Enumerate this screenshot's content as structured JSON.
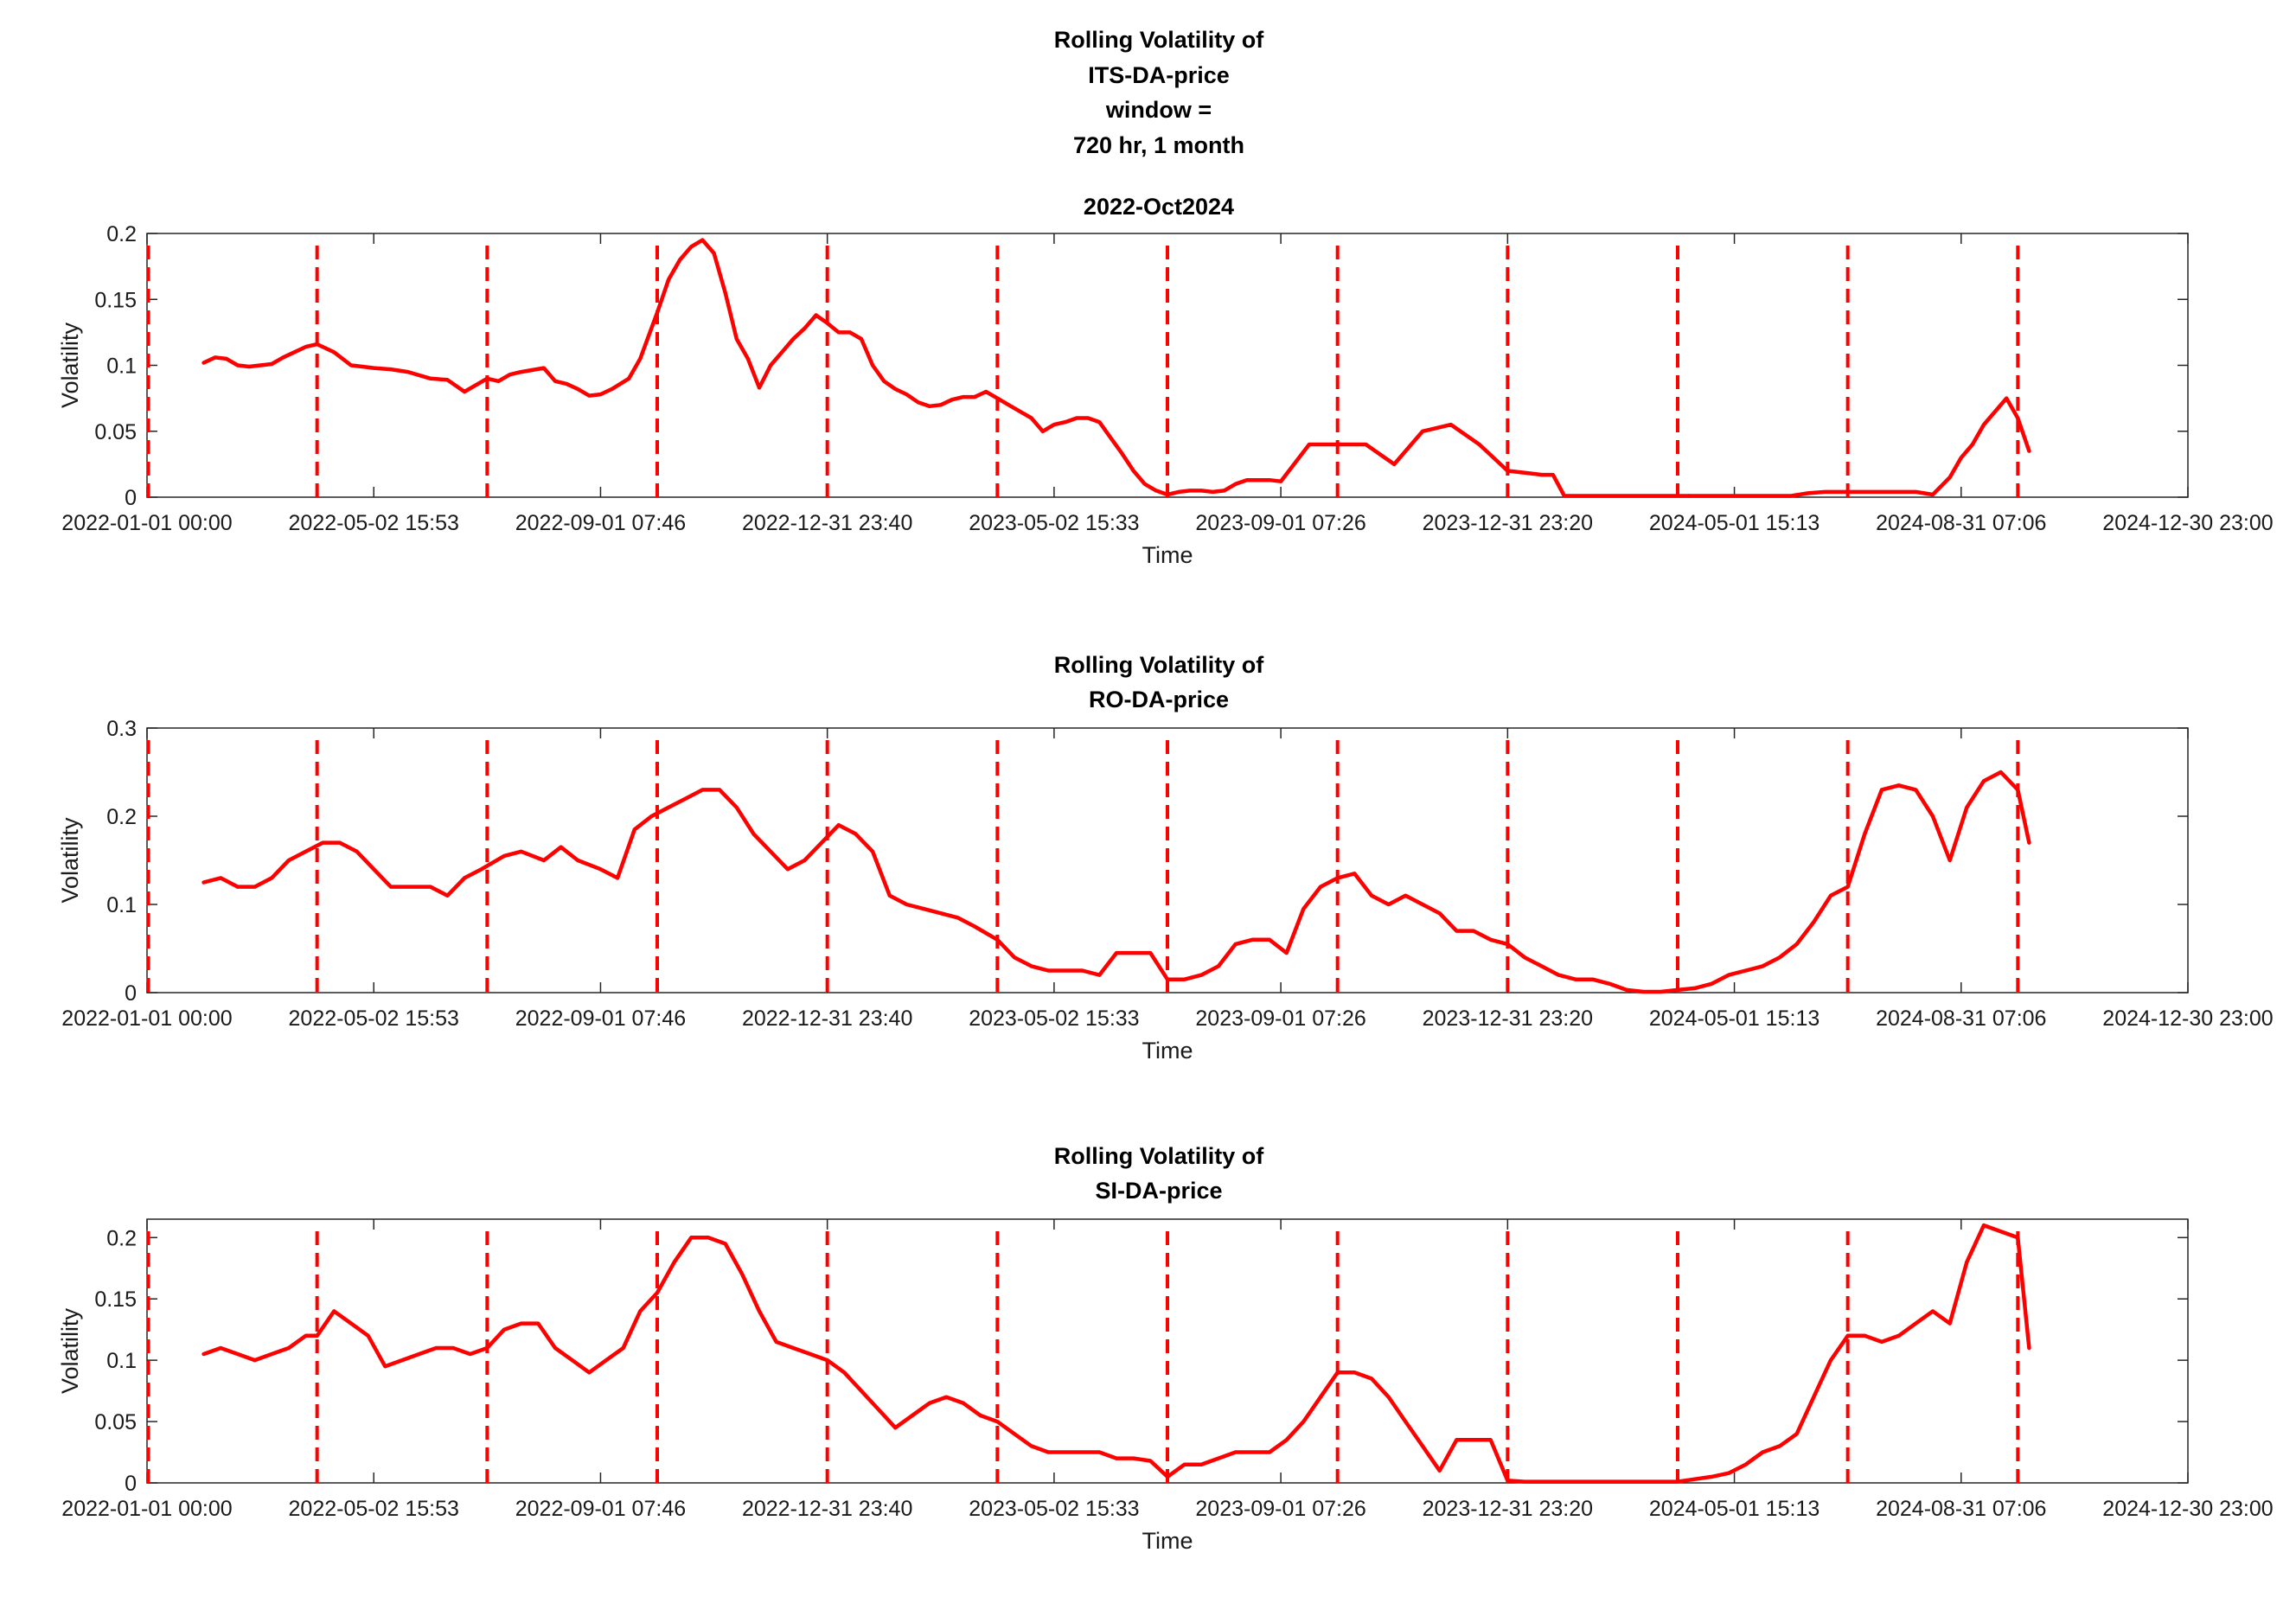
{
  "figure": {
    "title_lines": [
      "Rolling Volatility of",
      "ITS-DA-price",
      "window =",
      "720 hr, 1 month"
    ]
  },
  "colors": {
    "line": "#ff0000",
    "axis": "#262626",
    "background": "#ffffff"
  },
  "chart_data": [
    {
      "type": "line",
      "title_lines": [
        "2022-Oct2024"
      ],
      "xlabel": "Time",
      "ylabel": "Volatility",
      "x_ticks": [
        "2022-01-01 00:00",
        "2022-05-02 15:53",
        "2022-09-01 07:46",
        "2022-12-31 23:40",
        "2023-05-02 15:33",
        "2023-09-01 07:26",
        "2023-12-31 23:20",
        "2024-05-01 15:13",
        "2024-08-31 07:06",
        "2024-12-30 23:00"
      ],
      "y_ticks": [
        "0",
        "0.05",
        "0.1",
        "0.15",
        "0.2"
      ],
      "ylim": [
        0,
        0.2
      ],
      "xlim_months": [
        0,
        36
      ],
      "month_markers": [
        0,
        3,
        6,
        9,
        12,
        15,
        18,
        21,
        24,
        27,
        30,
        33
      ],
      "series": [
        {
          "x": [
            1,
            1.2,
            1.4,
            1.6,
            1.8,
            2.0,
            2.2,
            2.4,
            2.6,
            2.8,
            3.0,
            3.3,
            3.6,
            3.8,
            4.0,
            4.3,
            4.6,
            5.0,
            5.3,
            5.6,
            6.0,
            6.2,
            6.4,
            6.6,
            7.0,
            7.2,
            7.4,
            7.6,
            7.8,
            8.0,
            8.2,
            8.5,
            8.7,
            9.0,
            9.2,
            9.4,
            9.6,
            9.8,
            10.0,
            10.2,
            10.4,
            10.6,
            10.8,
            11.0,
            11.2,
            11.4,
            11.6,
            11.8,
            12.0,
            12.2,
            12.4,
            12.6,
            12.8,
            13.0,
            13.2,
            13.4,
            13.6,
            13.8,
            14.0,
            14.2,
            14.4,
            14.6,
            14.8,
            15.0,
            15.2,
            15.4,
            15.6,
            15.8,
            16.0,
            16.2,
            16.4,
            16.6,
            16.8,
            17.0,
            17.2,
            17.4,
            17.6,
            17.8,
            18.0,
            18.2,
            18.4,
            18.6,
            18.8,
            19.0,
            19.2,
            19.4,
            19.6,
            19.8,
            20.0,
            20.5,
            21.0,
            21.5,
            22.0,
            22.5,
            23.0,
            23.5,
            24.0,
            24.2,
            24.4,
            24.6,
            24.8,
            25.0,
            25.2,
            25.4,
            25.6,
            25.8,
            26.0,
            26.2,
            26.4,
            26.6,
            26.8,
            27.0,
            27.2
          ],
          "y": [
            0.102,
            0.106,
            0.105,
            0.1,
            0.099,
            0.1,
            0.101,
            0.106,
            0.11,
            0.114,
            0.116,
            0.11,
            0.1,
            0.099,
            0.098,
            0.097,
            0.095,
            0.09,
            0.089,
            0.08,
            0.09,
            0.088,
            0.093,
            0.095,
            0.098,
            0.088,
            0.086,
            0.082,
            0.077,
            0.078,
            0.082,
            0.09,
            0.105,
            0.14,
            0.165,
            0.18,
            0.19,
            0.195,
            0.185,
            0.155,
            0.12,
            0.105,
            0.083,
            0.1,
            0.11,
            0.12,
            0.128,
            0.138,
            0.132,
            0.125,
            0.125,
            0.12,
            0.1,
            0.088,
            0.082,
            0.078,
            0.072,
            0.069,
            0.07,
            0.074,
            0.076,
            0.076,
            0.08,
            0.075,
            0.07,
            0.065,
            0.06,
            0.05,
            0.055,
            0.057,
            0.06,
            0.06,
            0.057,
            0.045,
            0.033,
            0.02,
            0.01,
            0.005,
            0.002,
            0.004,
            0.005,
            0.005,
            0.004,
            0.005,
            0.01,
            0.013,
            0.013,
            0.013,
            0.012,
            0.04,
            0.04,
            0.04,
            0.025,
            0.05,
            0.055,
            0.04,
            0.02,
            0.019,
            0.018,
            0.017,
            0.017,
            0.001,
            0.001,
            0.001,
            0.001,
            0.001,
            0.001,
            0.001,
            0.001,
            0.001,
            0.001,
            0.001,
            0.001
          ]
        },
        {
          "x": [
            27.2,
            27.5,
            28.0,
            28.5,
            29.0,
            29.3,
            29.6,
            30.0,
            30.4,
            30.8,
            31.2,
            31.5,
            31.8,
            32.0,
            32.2,
            32.4,
            32.6,
            32.8,
            33.0,
            33.2
          ],
          "y": [
            0.001,
            0.001,
            0.001,
            0.001,
            0.001,
            0.003,
            0.004,
            0.004,
            0.004,
            0.004,
            0.004,
            0.002,
            0.015,
            0.03,
            0.04,
            0.055,
            0.065,
            0.075,
            0.06,
            0.035
          ]
        }
      ]
    },
    {
      "type": "line",
      "title_lines": [
        "Rolling Volatility of",
        "RO-DA-price"
      ],
      "xlabel": "Time",
      "ylabel": "Volatility",
      "x_ticks": [
        "2022-01-01 00:00",
        "2022-05-02 15:53",
        "2022-09-01 07:46",
        "2022-12-31 23:40",
        "2023-05-02 15:33",
        "2023-09-01 07:26",
        "2023-12-31 23:20",
        "2024-05-01 15:13",
        "2024-08-31 07:06",
        "2024-12-30 23:00"
      ],
      "y_ticks": [
        "0",
        "0.1",
        "0.2",
        "0.3"
      ],
      "ylim": [
        0,
        0.3
      ],
      "xlim_months": [
        0,
        36
      ],
      "month_markers": [
        0,
        3,
        6,
        9,
        12,
        15,
        18,
        21,
        24,
        27,
        30,
        33
      ],
      "series": [
        {
          "x": [
            1.0,
            1.3,
            1.6,
            1.9,
            2.2,
            2.5,
            2.8,
            3.1,
            3.4,
            3.7,
            4.0,
            4.3,
            4.6,
            5.0,
            5.3,
            5.6,
            5.9,
            6.3,
            6.6,
            7.0,
            7.3,
            7.6,
            8.0,
            8.3,
            8.6,
            8.9,
            9.2,
            9.5,
            9.8,
            10.1,
            10.4,
            10.7,
            11.0,
            11.3,
            11.6,
            11.9,
            12.2,
            12.5,
            12.8,
            13.1,
            13.4,
            13.7,
            14.0,
            14.3,
            14.6,
            15.0,
            15.3,
            15.6,
            15.9,
            16.2,
            16.5,
            16.8,
            17.1,
            17.4,
            17.7,
            18.0,
            18.3,
            18.6,
            18.9,
            19.2,
            19.5,
            19.8,
            20.1,
            20.4,
            20.7,
            21.0,
            21.3,
            21.6,
            21.9,
            22.2,
            22.5,
            22.8,
            23.1,
            23.4,
            23.7,
            24.0,
            24.3,
            24.6,
            24.9,
            25.2,
            25.5,
            25.8,
            26.1,
            26.4,
            26.7,
            27.0,
            27.3,
            27.6,
            27.9,
            28.2,
            28.5,
            28.8,
            29.1,
            29.4,
            29.7,
            30.0,
            30.3,
            30.6,
            30.9,
            31.2,
            31.5,
            31.8,
            32.1,
            32.4,
            32.7,
            33.0,
            33.2
          ],
          "y": [
            0.125,
            0.13,
            0.12,
            0.12,
            0.13,
            0.15,
            0.16,
            0.17,
            0.17,
            0.16,
            0.14,
            0.12,
            0.12,
            0.12,
            0.11,
            0.13,
            0.14,
            0.155,
            0.16,
            0.15,
            0.165,
            0.15,
            0.14,
            0.13,
            0.185,
            0.2,
            0.21,
            0.22,
            0.23,
            0.23,
            0.21,
            0.18,
            0.16,
            0.14,
            0.15,
            0.17,
            0.19,
            0.18,
            0.16,
            0.11,
            0.1,
            0.095,
            0.09,
            0.085,
            0.075,
            0.06,
            0.04,
            0.03,
            0.025,
            0.025,
            0.025,
            0.02,
            0.045,
            0.045,
            0.045,
            0.015,
            0.015,
            0.02,
            0.03,
            0.055,
            0.06,
            0.06,
            0.045,
            0.095,
            0.12,
            0.13,
            0.135,
            0.11,
            0.1,
            0.11,
            0.1,
            0.09,
            0.07,
            0.07,
            0.06,
            0.055,
            0.04,
            0.03,
            0.02,
            0.015,
            0.015,
            0.01,
            0.003,
            0.001,
            0.001,
            0.003,
            0.005,
            0.01,
            0.02,
            0.025,
            0.03,
            0.04,
            0.055,
            0.08,
            0.11,
            0.12,
            0.18,
            0.23,
            0.235,
            0.23,
            0.2,
            0.15,
            0.21,
            0.24,
            0.25,
            0.23,
            0.17
          ]
        }
      ]
    },
    {
      "type": "line",
      "title_lines": [
        "Rolling Volatility of",
        "SI-DA-price"
      ],
      "xlabel": "Time",
      "ylabel": "Volatility",
      "x_ticks": [
        "2022-01-01 00:00",
        "2022-05-02 15:53",
        "2022-09-01 07:46",
        "2022-12-31 23:40",
        "2023-05-02 15:33",
        "2023-09-01 07:26",
        "2023-12-31 23:20",
        "2024-05-01 15:13",
        "2024-08-31 07:06",
        "2024-12-30 23:00"
      ],
      "y_ticks": [
        "0",
        "0.05",
        "0.1",
        "0.15",
        "0.2"
      ],
      "ylim": [
        0,
        0.215
      ],
      "xlim_months": [
        0,
        36
      ],
      "month_markers": [
        0,
        3,
        6,
        9,
        12,
        15,
        18,
        21,
        24,
        27,
        30,
        33
      ],
      "series": [
        {
          "x": [
            1.0,
            1.3,
            1.6,
            1.9,
            2.2,
            2.5,
            2.8,
            3.0,
            3.3,
            3.6,
            3.9,
            4.2,
            4.5,
            4.8,
            5.1,
            5.4,
            5.7,
            6.0,
            6.3,
            6.6,
            6.9,
            7.2,
            7.5,
            7.8,
            8.1,
            8.4,
            8.7,
            9.0,
            9.3,
            9.6,
            9.9,
            10.2,
            10.5,
            10.8,
            11.1,
            11.4,
            11.7,
            12.0,
            12.3,
            12.6,
            12.9,
            13.2,
            13.5,
            13.8,
            14.1,
            14.4,
            14.7,
            15.0,
            15.3,
            15.6,
            15.9,
            16.2,
            16.5,
            16.8,
            17.1,
            17.4,
            17.7,
            18.0,
            18.3,
            18.6,
            18.9,
            19.2,
            19.5,
            19.8,
            20.1,
            20.4,
            20.7,
            21.0,
            21.3,
            21.6,
            21.9,
            22.2,
            22.5,
            22.8,
            23.1,
            23.4,
            23.7,
            24.0,
            24.3,
            24.6,
            24.9,
            25.2,
            25.5,
            25.8,
            26.1,
            26.4,
            26.7,
            27.0,
            27.3,
            27.6,
            27.9,
            28.2,
            28.5,
            28.8,
            29.1,
            29.4,
            29.7,
            30.0,
            30.3,
            30.6,
            30.9,
            31.2,
            31.5,
            31.8,
            32.1,
            32.4,
            32.7,
            33.0,
            33.2
          ],
          "y": [
            0.105,
            0.11,
            0.105,
            0.1,
            0.105,
            0.11,
            0.12,
            0.12,
            0.14,
            0.13,
            0.12,
            0.095,
            0.1,
            0.105,
            0.11,
            0.11,
            0.105,
            0.11,
            0.125,
            0.13,
            0.13,
            0.11,
            0.1,
            0.09,
            0.1,
            0.11,
            0.14,
            0.155,
            0.18,
            0.2,
            0.2,
            0.195,
            0.17,
            0.14,
            0.115,
            0.11,
            0.105,
            0.1,
            0.09,
            0.075,
            0.06,
            0.045,
            0.055,
            0.065,
            0.07,
            0.065,
            0.055,
            0.05,
            0.04,
            0.03,
            0.025,
            0.025,
            0.025,
            0.025,
            0.02,
            0.02,
            0.018,
            0.005,
            0.015,
            0.015,
            0.02,
            0.025,
            0.025,
            0.025,
            0.035,
            0.05,
            0.07,
            0.09,
            0.09,
            0.085,
            0.07,
            0.05,
            0.03,
            0.01,
            0.035,
            0.035,
            0.035,
            0.002,
            0.001,
            0.001,
            0.001,
            0.001,
            0.001,
            0.001,
            0.001,
            0.001,
            0.001,
            0.001,
            0.003,
            0.005,
            0.008,
            0.015,
            0.025,
            0.03,
            0.04,
            0.07,
            0.1,
            0.12,
            0.12,
            0.115,
            0.12,
            0.13,
            0.14,
            0.13,
            0.18,
            0.21,
            0.205,
            0.2,
            0.11
          ]
        }
      ]
    }
  ]
}
